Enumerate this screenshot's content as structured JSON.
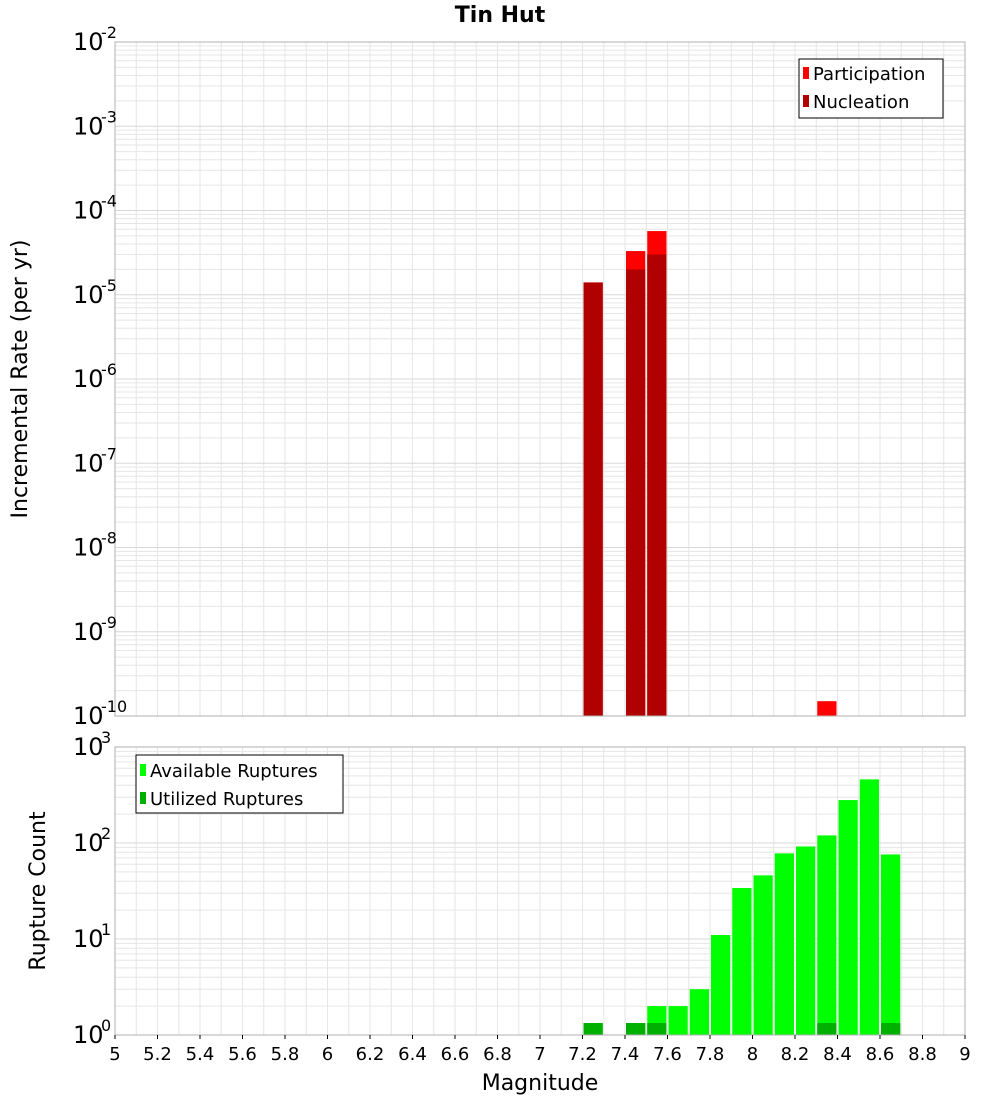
{
  "title": "Tin Hut",
  "xlabel": "Magnitude",
  "colors": {
    "participation": "#ff0000",
    "nucleation": "#b00000",
    "available": "#00ff00",
    "utilized": "#00b000",
    "grid": "#e6e6e6",
    "frame": "#b0b0b0"
  },
  "chart_data": [
    {
      "type": "bar",
      "title": "Tin Hut",
      "ylabel": "Incremental Rate (per yr)",
      "xlabel": "",
      "y_scale": "log",
      "ylim_exp": [
        -10,
        -2
      ],
      "xlim": [
        5,
        9
      ],
      "grid": true,
      "legend_position": "top-right",
      "legend": [
        "Participation",
        "Nucleation"
      ],
      "series": [
        {
          "name": "Participation",
          "x": [
            7.25,
            7.45,
            7.55,
            8.35
          ],
          "values": [
            1.4e-05,
            3.3e-05,
            5.7e-05,
            1.5e-10
          ]
        },
        {
          "name": "Nucleation",
          "x": [
            7.25,
            7.45,
            7.55
          ],
          "values": [
            1.4e-05,
            2e-05,
            3e-05
          ]
        }
      ]
    },
    {
      "type": "bar",
      "ylabel": "Rupture Count",
      "xlabel": "Magnitude",
      "y_scale": "log",
      "ylim_exp": [
        0,
        3
      ],
      "xlim": [
        5,
        9
      ],
      "xticks": [
        "5",
        "5.2",
        "5.4",
        "5.6",
        "5.8",
        "6",
        "6.2",
        "6.4",
        "6.6",
        "6.8",
        "7",
        "7.2",
        "7.4",
        "7.6",
        "7.8",
        "8",
        "8.2",
        "8.4",
        "8.6",
        "8.8",
        "9"
      ],
      "grid": true,
      "legend_position": "top-left",
      "legend": [
        "Available Ruptures",
        "Utilized Ruptures"
      ],
      "series": [
        {
          "name": "Available Ruptures",
          "x": [
            7.25,
            7.45,
            7.55,
            7.65,
            7.75,
            7.85,
            7.95,
            8.05,
            8.15,
            8.25,
            8.35,
            8.45,
            8.55,
            8.65
          ],
          "values": [
            1,
            1,
            2,
            2,
            3,
            11,
            34,
            46,
            78,
            92,
            120,
            280,
            460,
            76
          ]
        },
        {
          "name": "Utilized Ruptures",
          "x": [
            7.25,
            7.45,
            7.55,
            8.35,
            8.65
          ],
          "values": [
            1,
            1,
            1,
            1,
            1
          ]
        }
      ]
    }
  ]
}
